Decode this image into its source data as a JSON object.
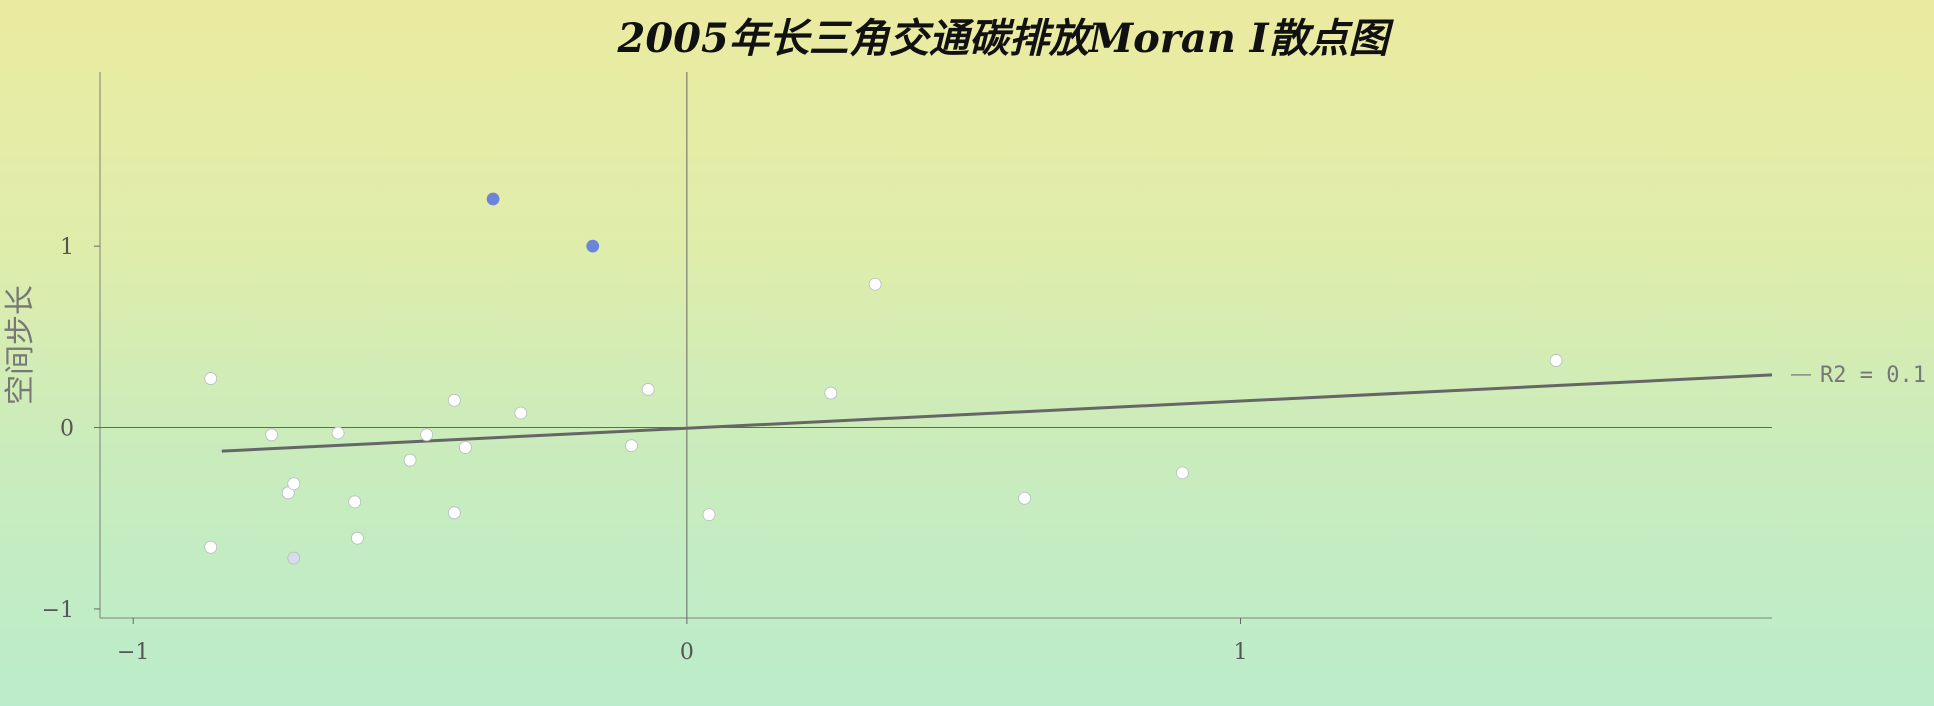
{
  "chart_data": {
    "type": "scatter",
    "title": "2005年长三角交通碳排放Moran I散点图",
    "xlabel": "",
    "ylabel": "空间步长",
    "xlim": [
      -1.06,
      1.96
    ],
    "ylim": [
      -1.05,
      1.96
    ],
    "x_ticks": [
      -1,
      0,
      1
    ],
    "x_tick_labels": [
      "−1",
      "0",
      "1"
    ],
    "y_ticks": [
      -1,
      0,
      1
    ],
    "y_tick_labels": [
      "−1",
      "0",
      "1"
    ],
    "grid": false,
    "legend_placement": "right",
    "legend_label": "R2 = 0.1",
    "colors": {
      "highlight": "#6c85db",
      "point": "#ffffff",
      "pale_point": "#d4dde9",
      "fit_line": "#666666",
      "axis": "#666666"
    },
    "series": [
      {
        "points": [
          {
            "x": -0.86,
            "y": 0.27
          },
          {
            "x": -0.86,
            "y": -0.66
          },
          {
            "x": -0.75,
            "y": -0.04
          },
          {
            "x": -0.72,
            "y": -0.36
          },
          {
            "x": -0.71,
            "y": -0.31
          },
          {
            "x": -0.63,
            "y": -0.03
          },
          {
            "x": -0.6,
            "y": -0.41
          },
          {
            "x": -0.595,
            "y": -0.61
          },
          {
            "x": -0.5,
            "y": -0.18
          },
          {
            "x": -0.47,
            "y": -0.04
          },
          {
            "x": -0.42,
            "y": 0.15
          },
          {
            "x": -0.42,
            "y": -0.47
          },
          {
            "x": -0.4,
            "y": -0.11
          },
          {
            "x": -0.3,
            "y": 0.08
          },
          {
            "x": -0.1,
            "y": -0.1
          },
          {
            "x": -0.07,
            "y": 0.21
          },
          {
            "x": 0.04,
            "y": -0.48
          },
          {
            "x": 0.26,
            "y": 0.19
          },
          {
            "x": 0.34,
            "y": 0.79
          },
          {
            "x": 0.61,
            "y": -0.39
          },
          {
            "x": 0.895,
            "y": -0.25
          },
          {
            "x": 1.57,
            "y": 0.37
          }
        ]
      },
      {
        "points": [
          {
            "x": -0.35,
            "y": 1.26
          },
          {
            "x": -0.17,
            "y": 1.0
          }
        ]
      },
      {
        "points": [
          {
            "x": -0.71,
            "y": -0.72
          }
        ]
      }
    ],
    "fit_line": {
      "x": [
        -0.84,
        1.96
      ],
      "y": [
        -0.13,
        0.29
      ]
    }
  }
}
